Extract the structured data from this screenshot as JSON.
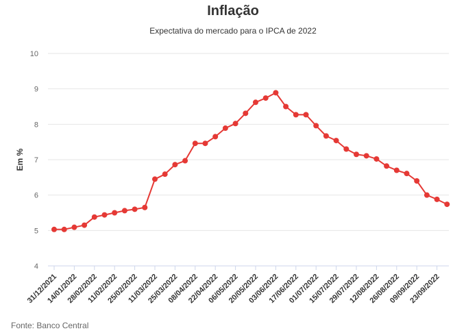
{
  "chart_data": {
    "type": "line",
    "title": "Inflação",
    "subtitle": "Expectativa do mercado para o IPCA de 2022",
    "ylabel": "Em %",
    "xlabel": "",
    "ylim": [
      4,
      10
    ],
    "yticks": [
      4,
      5,
      6,
      7,
      8,
      9,
      10
    ],
    "grid": true,
    "tick_labels": [
      "31/12/2021",
      "14/01/2022",
      "28/02/2022",
      "11/02/2022",
      "25/02/2022",
      "11/03/2022",
      "25/03/2022",
      "08/04/2022",
      "22/04/2022",
      "06/05/2022",
      "20/05/2022",
      "03/06/2022",
      "17/06/2022",
      "01/07/2022",
      "15/07/2022",
      "29/07/2022",
      "12/08/2022",
      "26/08/2022",
      "09/09/2022",
      "23/09/2022"
    ],
    "values": [
      5.03,
      5.03,
      5.09,
      5.15,
      5.38,
      5.44,
      5.5,
      5.56,
      5.6,
      5.65,
      6.45,
      6.59,
      6.86,
      6.97,
      7.46,
      7.46,
      7.65,
      7.89,
      8.02,
      8.31,
      8.62,
      8.74,
      8.89,
      8.5,
      8.27,
      8.27,
      7.96,
      7.67,
      7.54,
      7.3,
      7.15,
      7.11,
      7.02,
      6.82,
      6.7,
      6.61,
      6.4,
      6.0,
      5.88,
      5.74
    ],
    "colors": {
      "line": "#e53935",
      "grid": "#e6e6e6",
      "axis": "#ccd6eb"
    }
  },
  "source": "Fonte: Banco Central"
}
